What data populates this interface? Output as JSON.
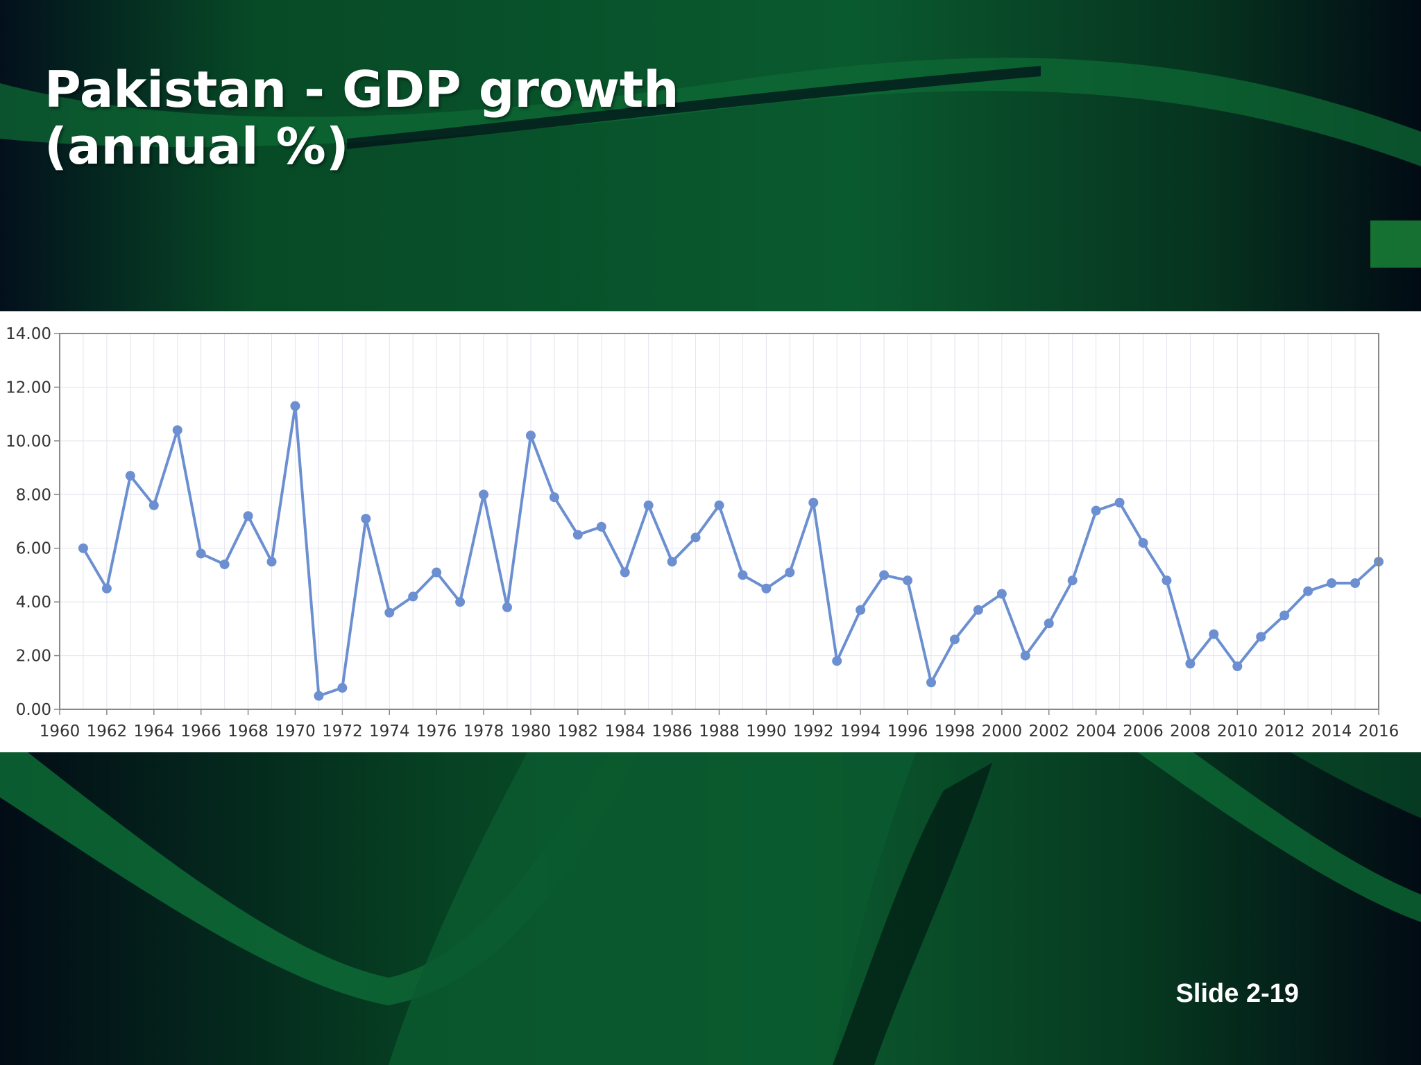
{
  "slide": {
    "title_line1": "Pakistan - GDP growth",
    "title_line2": "(annual %)",
    "slide_number": "Slide 2-19"
  },
  "colors": {
    "background_dark": "#021a12",
    "background_green": "#0b5a2e",
    "line": "#6b8fd0",
    "marker": "#6b8fd0",
    "grid": "#e4e4ee",
    "axis": "#888888"
  },
  "chart_data": {
    "type": "line",
    "title": "",
    "xlabel": "",
    "ylabel": "",
    "xlim": [
      1960,
      2016
    ],
    "ylim": [
      0,
      14
    ],
    "grid": true,
    "legend": "none",
    "y_ticks": [
      "0.00",
      "2.00",
      "4.00",
      "6.00",
      "8.00",
      "10.00",
      "12.00",
      "14.00"
    ],
    "x_ticks": [
      "1960",
      "1962",
      "1964",
      "1966",
      "1968",
      "1970",
      "1972",
      "1974",
      "1976",
      "1978",
      "1980",
      "1982",
      "1984",
      "1986",
      "1988",
      "1990",
      "1992",
      "1994",
      "1996",
      "1998",
      "2000",
      "2002",
      "2004",
      "2006",
      "2008",
      "2010",
      "2012",
      "2014",
      "2016"
    ],
    "x": [
      1961,
      1962,
      1963,
      1964,
      1965,
      1966,
      1967,
      1968,
      1969,
      1970,
      1971,
      1972,
      1973,
      1974,
      1975,
      1976,
      1977,
      1978,
      1979,
      1980,
      1981,
      1982,
      1983,
      1984,
      1985,
      1986,
      1987,
      1988,
      1989,
      1990,
      1991,
      1992,
      1993,
      1994,
      1995,
      1996,
      1997,
      1998,
      1999,
      2000,
      2001,
      2002,
      2003,
      2004,
      2005,
      2006,
      2007,
      2008,
      2009,
      2010,
      2011,
      2012,
      2013,
      2014,
      2015,
      2016
    ],
    "series": [
      {
        "values": [
          6.0,
          4.5,
          8.7,
          7.6,
          10.4,
          5.8,
          5.4,
          7.2,
          5.5,
          11.3,
          0.5,
          0.8,
          7.1,
          3.6,
          4.2,
          5.1,
          4.0,
          8.0,
          3.8,
          10.2,
          7.9,
          6.5,
          6.8,
          5.1,
          7.6,
          5.5,
          6.4,
          7.6,
          5.0,
          4.5,
          5.1,
          7.7,
          1.8,
          3.7,
          5.0,
          4.8,
          1.0,
          2.6,
          3.7,
          4.3,
          2.0,
          3.2,
          4.8,
          7.4,
          7.7,
          6.2,
          4.8,
          1.7,
          2.8,
          1.6,
          2.7,
          3.5,
          4.4,
          4.7,
          4.7,
          5.5
        ]
      }
    ]
  }
}
